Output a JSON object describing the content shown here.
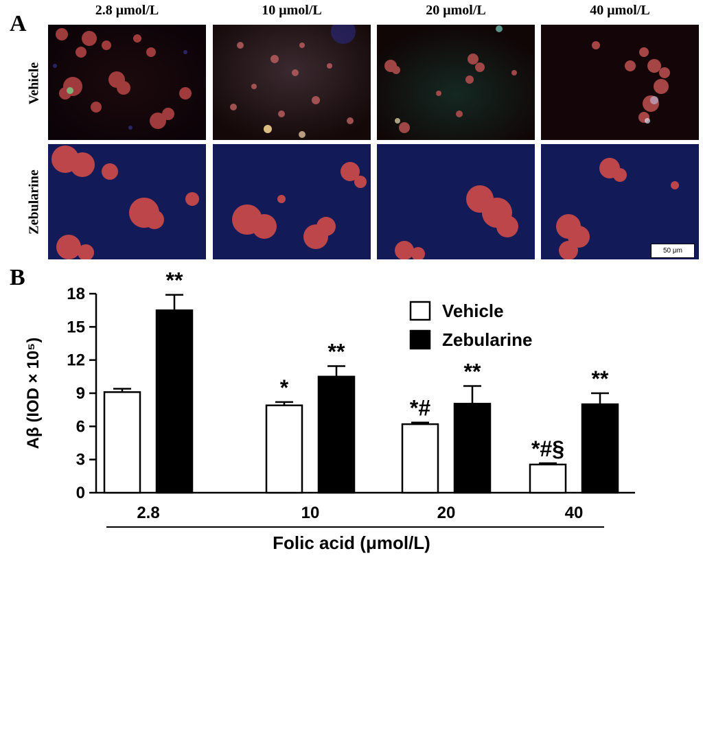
{
  "figure": {
    "panel_a_label": "A",
    "panel_b_label": "B",
    "columns": [
      "2.8 μmol/L",
      "10 μmol/L",
      "20 μmol/L",
      "40 μmol/L"
    ],
    "rows": [
      "Vehicle",
      "Zebularine"
    ],
    "scale_bar": "50 μm"
  },
  "colors": {
    "vehicle_fill": "#ffffff",
    "zebularine_fill": "#000000",
    "plaque_red": "#c84848",
    "nuclei_blue": "#1c2a8a"
  },
  "chart_data": {
    "type": "bar",
    "categories": [
      "2.8",
      "10",
      "20",
      "40"
    ],
    "series": [
      {
        "name": "Vehicle",
        "values": [
          9.1,
          7.9,
          6.2,
          2.55
        ],
        "errors": [
          0.3,
          0.3,
          0.15,
          0.12
        ],
        "annotations": [
          "",
          "*",
          "*#",
          "*#§"
        ]
      },
      {
        "name": "Zebularine",
        "values": [
          16.5,
          10.5,
          8.05,
          8.0
        ],
        "errors": [
          1.4,
          0.95,
          1.6,
          1.0
        ],
        "annotations": [
          "**",
          "**",
          "**",
          "**"
        ]
      }
    ],
    "xlabel": "Folic acid (μmol/L)",
    "ylabel": "Aβ (IOD × 10⁵)",
    "ylim": [
      0,
      18
    ],
    "yticks": [
      0,
      3,
      6,
      9,
      12,
      15,
      18
    ],
    "legend_position": "top-right",
    "grid": false
  }
}
